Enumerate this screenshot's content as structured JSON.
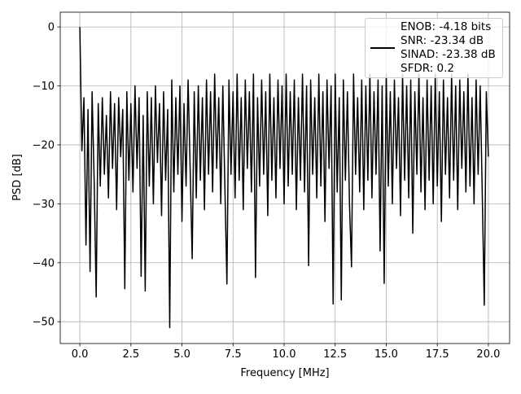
{
  "chart_data": {
    "type": "line",
    "xlabel": "Frequency [MHz]",
    "ylabel": "PSD [dB]",
    "x": [
      0,
      0.1,
      0.2,
      0.3,
      0.4,
      0.5,
      0.6,
      0.7,
      0.8,
      0.9,
      1,
      1.1,
      1.2,
      1.3,
      1.4,
      1.5,
      1.6,
      1.7,
      1.8,
      1.9,
      2,
      2.1,
      2.2,
      2.3,
      2.4,
      2.5,
      2.6,
      2.7,
      2.8,
      2.9,
      3,
      3.1,
      3.2,
      3.3,
      3.4,
      3.5,
      3.6,
      3.7,
      3.8,
      3.9,
      4,
      4.1,
      4.2,
      4.3,
      4.4,
      4.5,
      4.6,
      4.7,
      4.8,
      4.9,
      5,
      5.1,
      5.2,
      5.3,
      5.4,
      5.5,
      5.6,
      5.7,
      5.8,
      5.9,
      6,
      6.1,
      6.2,
      6.3,
      6.4,
      6.5,
      6.6,
      6.7,
      6.8,
      6.9,
      7,
      7.1,
      7.2,
      7.3,
      7.4,
      7.5,
      7.6,
      7.7,
      7.8,
      7.9,
      8,
      8.1,
      8.2,
      8.3,
      8.4,
      8.5,
      8.6,
      8.7,
      8.8,
      8.9,
      9,
      9.1,
      9.2,
      9.3,
      9.4,
      9.5,
      9.6,
      9.7,
      9.8,
      9.9,
      10,
      10.1,
      10.2,
      10.3,
      10.4,
      10.5,
      10.6,
      10.7,
      10.8,
      10.9,
      11,
      11.1,
      11.2,
      11.3,
      11.4,
      11.5,
      11.6,
      11.7,
      11.8,
      11.9,
      12,
      12.1,
      12.2,
      12.3,
      12.4,
      12.5,
      12.6,
      12.7,
      12.8,
      12.9,
      13,
      13.1,
      13.2,
      13.3,
      13.4,
      13.5,
      13.6,
      13.7,
      13.8,
      13.9,
      14,
      14.1,
      14.2,
      14.3,
      14.4,
      14.5,
      14.6,
      14.7,
      14.8,
      14.9,
      15,
      15.1,
      15.2,
      15.3,
      15.4,
      15.5,
      15.6,
      15.7,
      15.8,
      15.9,
      16,
      16.1,
      16.2,
      16.3,
      16.4,
      16.5,
      16.6,
      16.7,
      16.8,
      16.9,
      17,
      17.1,
      17.2,
      17.3,
      17.4,
      17.5,
      17.6,
      17.7,
      17.8,
      17.9,
      18,
      18.1,
      18.2,
      18.3,
      18.4,
      18.5,
      18.6,
      18.7,
      18.8,
      18.9,
      19,
      19.1,
      19.2,
      19.3,
      19.4,
      19.5,
      19.6,
      19.7,
      19.8,
      19.9,
      20
    ],
    "series": [
      {
        "name": "ENOB: -4.18 bits\nSNR: -23.34 dB\nSINAD: -23.38 dB\nSFDR: 0.2",
        "color": "#000000",
        "values": [
          0,
          -21,
          -12,
          -37,
          -14,
          -41.5,
          -11,
          -26,
          -45.8,
          -13,
          -27,
          -12,
          -25,
          -15,
          -29,
          -11,
          -24,
          -13,
          -31,
          -12,
          -22,
          -14,
          -44.4,
          -11,
          -26,
          -13,
          -28,
          -10,
          -24,
          -12,
          -42.3,
          -15,
          -44.8,
          -11,
          -27,
          -12,
          -30,
          -10,
          -23,
          -13,
          -32,
          -11,
          -26,
          -14,
          -51,
          -9,
          -28,
          -12,
          -25,
          -10,
          -33,
          -13,
          -27,
          -9,
          -24,
          -39.3,
          -11,
          -29,
          -10,
          -26,
          -12,
          -31,
          -9,
          -25,
          -11,
          -28,
          -8,
          -24,
          -12,
          -30,
          -10,
          -27,
          -43.6,
          -9,
          -25,
          -11,
          -29,
          -8,
          -26,
          -12,
          -31,
          -9,
          -24,
          -11,
          -28,
          -8,
          -42.5,
          -12,
          -27,
          -9,
          -25,
          -11,
          -32,
          -8,
          -26,
          -12,
          -29,
          -9,
          -24,
          -10,
          -30,
          -8,
          -27,
          -11,
          -25,
          -9,
          -31,
          -12,
          -26,
          -8,
          -28,
          -10,
          -40.5,
          -9,
          -25,
          -12,
          -29,
          -8,
          -27,
          -11,
          -33,
          -9,
          -24,
          -10,
          -47,
          -8,
          -28,
          -12,
          -46.3,
          -9,
          -26,
          -11,
          -30,
          -40.7,
          -8,
          -25,
          -12,
          -28,
          -9,
          -31,
          -10,
          -26,
          -8,
          -29,
          -11,
          -25,
          -9,
          -38,
          -10,
          -43.5,
          -8,
          -27,
          -11,
          -30,
          -9,
          -24,
          -12,
          -32,
          -8,
          -26,
          -10,
          -29,
          -9,
          -35,
          -11,
          -25,
          -8,
          -28,
          -12,
          -31,
          -9,
          -26,
          -10,
          -30,
          -8,
          -27,
          -11,
          -33,
          -9,
          -25,
          -12,
          -29,
          -8,
          -26,
          -10,
          -31,
          -9,
          -24,
          -11,
          -28,
          -8,
          -27,
          -12,
          -30,
          -9,
          -25,
          -10,
          -28,
          -47.2,
          -11,
          -22
        ]
      }
    ],
    "xlim": [
      -0.96,
      21.04
    ],
    "xticks": [
      {
        "value": 0,
        "label": "0.0"
      },
      2.5,
      {
        "value": 5,
        "label": "5.0"
      },
      7.5,
      {
        "value": 10,
        "label": "10.0"
      },
      12.5,
      {
        "value": 15,
        "label": "15.0"
      },
      17.5,
      {
        "value": 20,
        "label": "20.0"
      }
    ],
    "ylim": [
      -53.7,
      2.5
    ],
    "yticks": [
      {
        "value": -50,
        "label": "−50"
      },
      {
        "value": -40,
        "label": "−40"
      },
      {
        "value": -30,
        "label": "−30"
      },
      {
        "value": -20,
        "label": "−20"
      },
      {
        "value": -10,
        "label": "−10"
      },
      0
    ],
    "grid": true,
    "legend": "upper right"
  }
}
